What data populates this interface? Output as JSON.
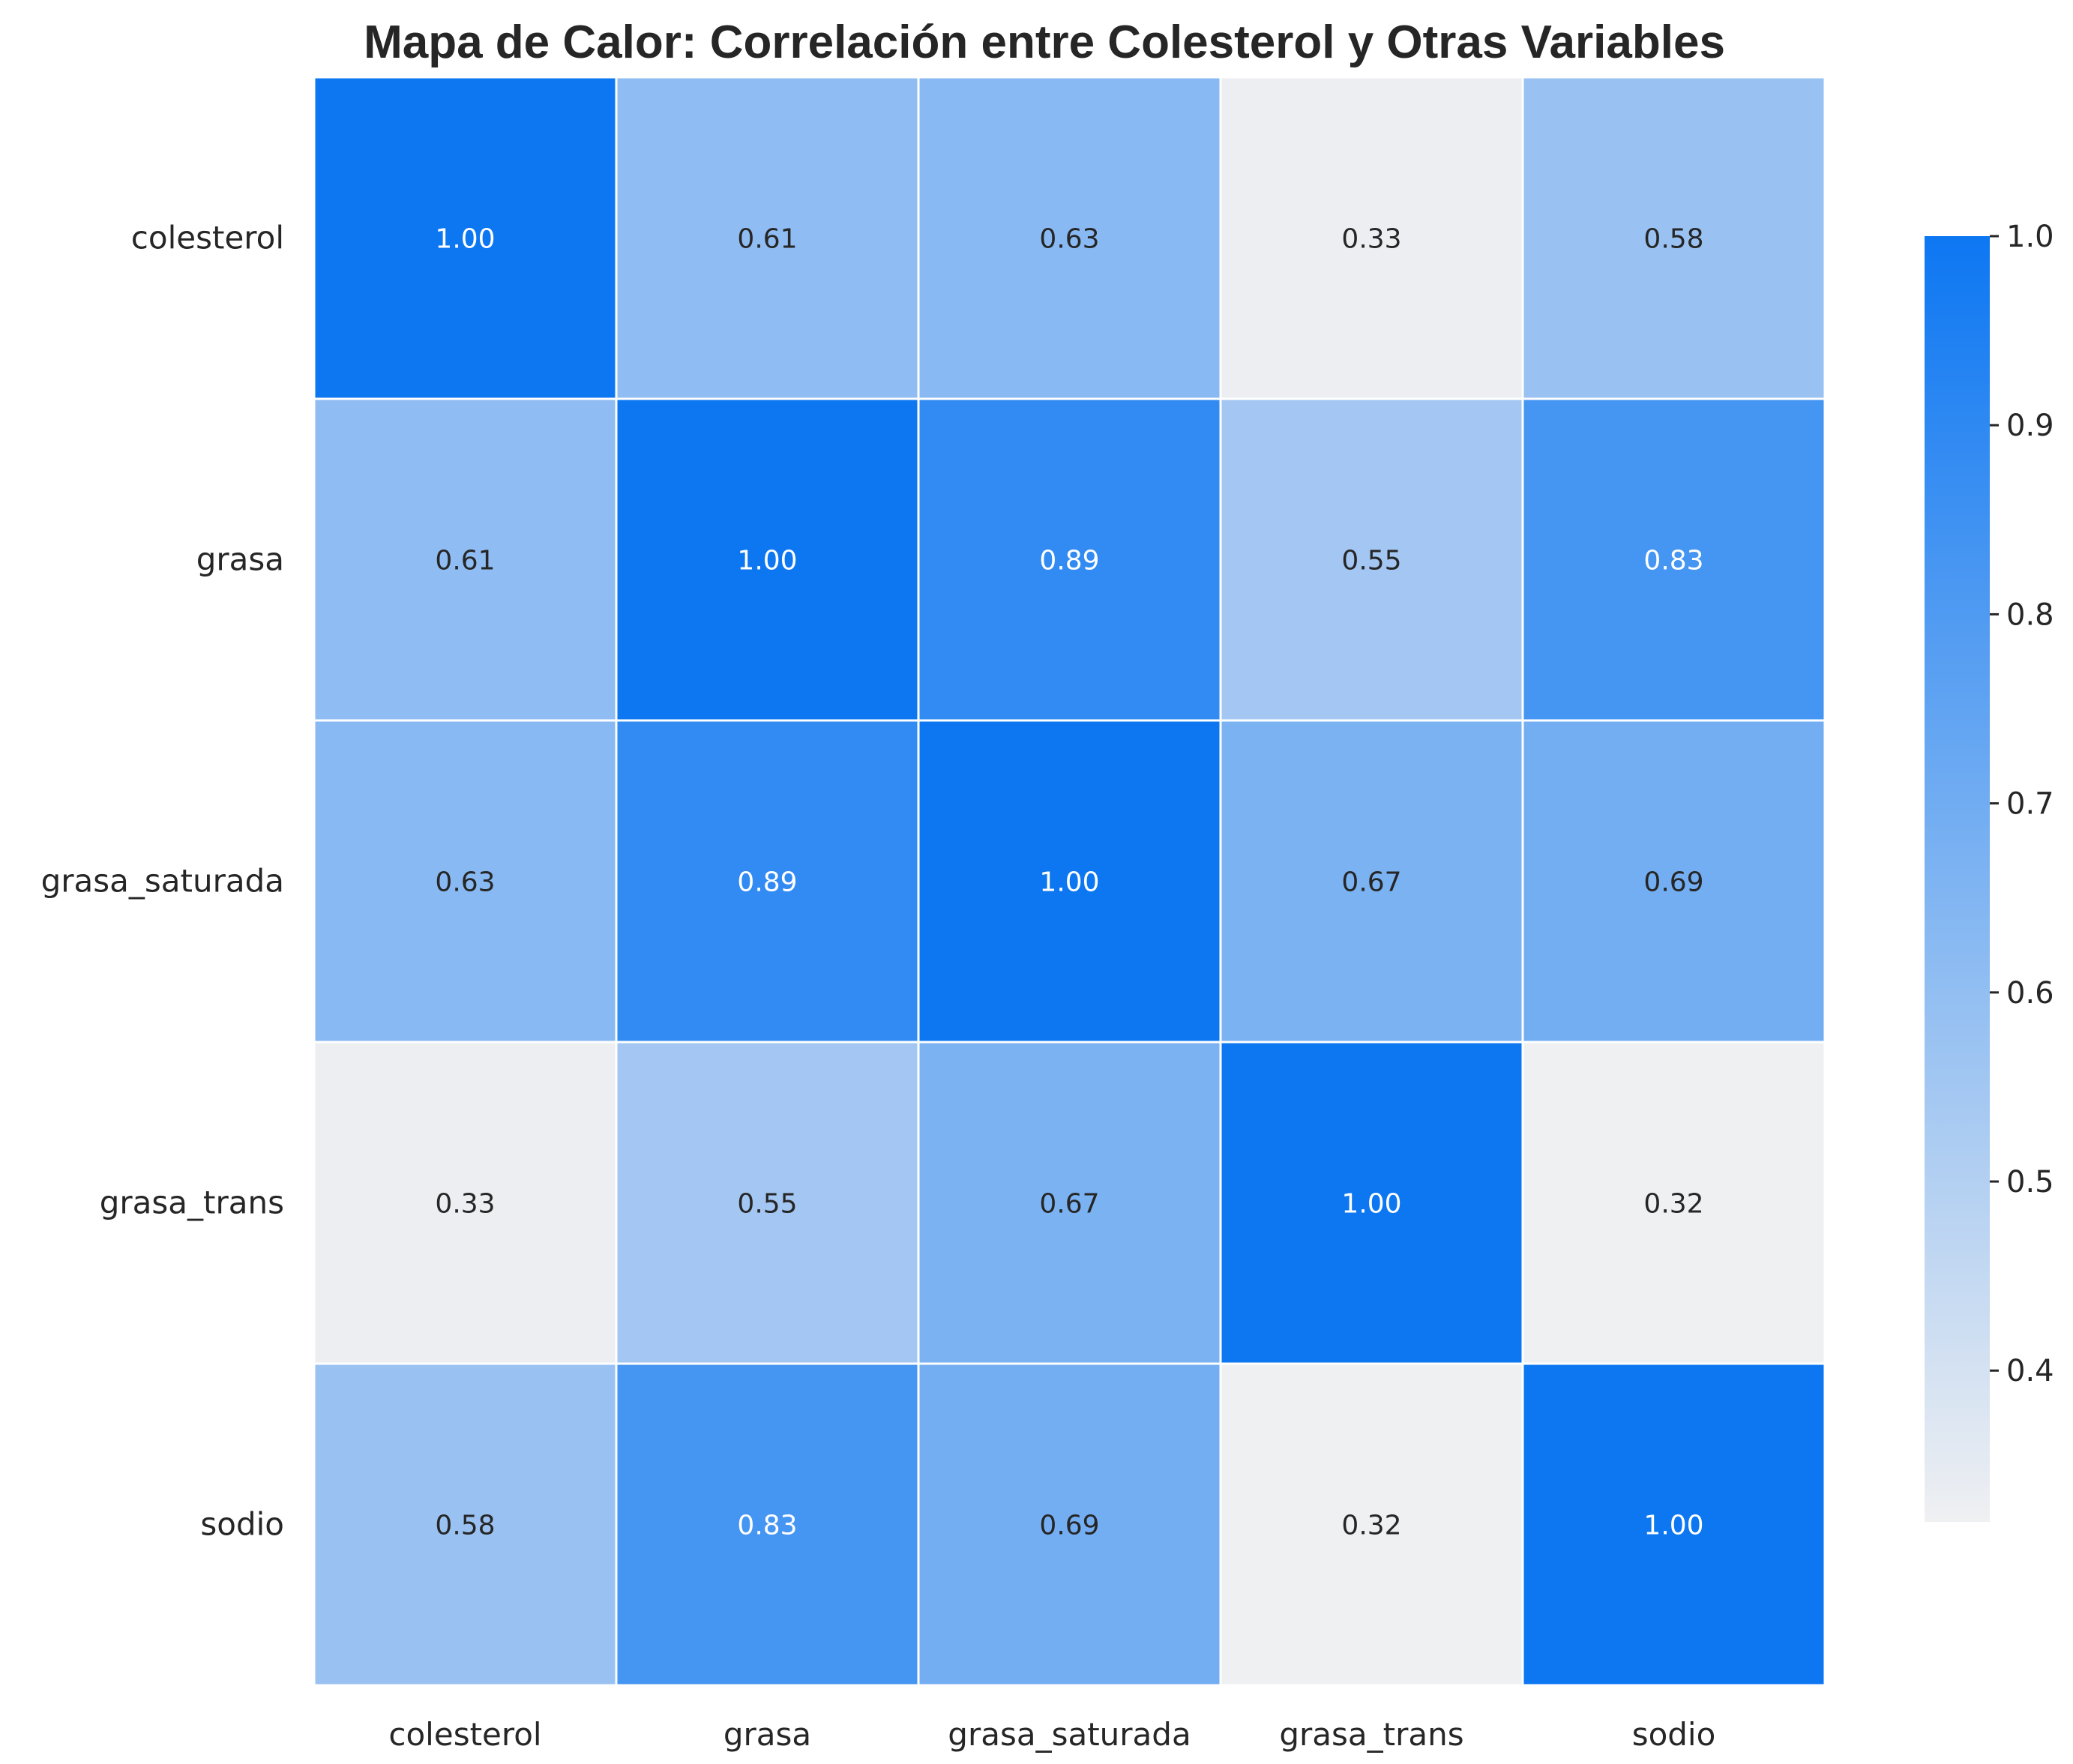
{
  "chart_data": {
    "type": "heatmap",
    "title": "Mapa de Calor: Correlación entre Colesterol y Otras Variables",
    "rows": [
      "colesterol",
      "grasa",
      "grasa_saturada",
      "grasa_trans",
      "sodio"
    ],
    "columns": [
      "colesterol",
      "grasa",
      "grasa_saturada",
      "grasa_trans",
      "sodio"
    ],
    "values": [
      [
        1.0,
        0.61,
        0.63,
        0.33,
        0.58
      ],
      [
        0.61,
        1.0,
        0.89,
        0.55,
        0.83
      ],
      [
        0.63,
        0.89,
        1.0,
        0.67,
        0.69
      ],
      [
        0.33,
        0.55,
        0.67,
        1.0,
        0.32
      ],
      [
        0.58,
        0.83,
        0.69,
        0.32,
        1.0
      ]
    ],
    "value_format": "0.00",
    "colorbar": {
      "range": [
        0.32,
        1.0
      ],
      "ticks": [
        "0.4",
        "0.5",
        "0.6",
        "0.7",
        "0.8",
        "0.9",
        "1.0"
      ],
      "tick_values": [
        0.4,
        0.5,
        0.6,
        0.7,
        0.8,
        0.9,
        1.0
      ],
      "color_low": "#eff0f2",
      "color_high": "#0d77f2",
      "placement": "right"
    },
    "grid": false,
    "cell_border_color": "#ffffff"
  }
}
